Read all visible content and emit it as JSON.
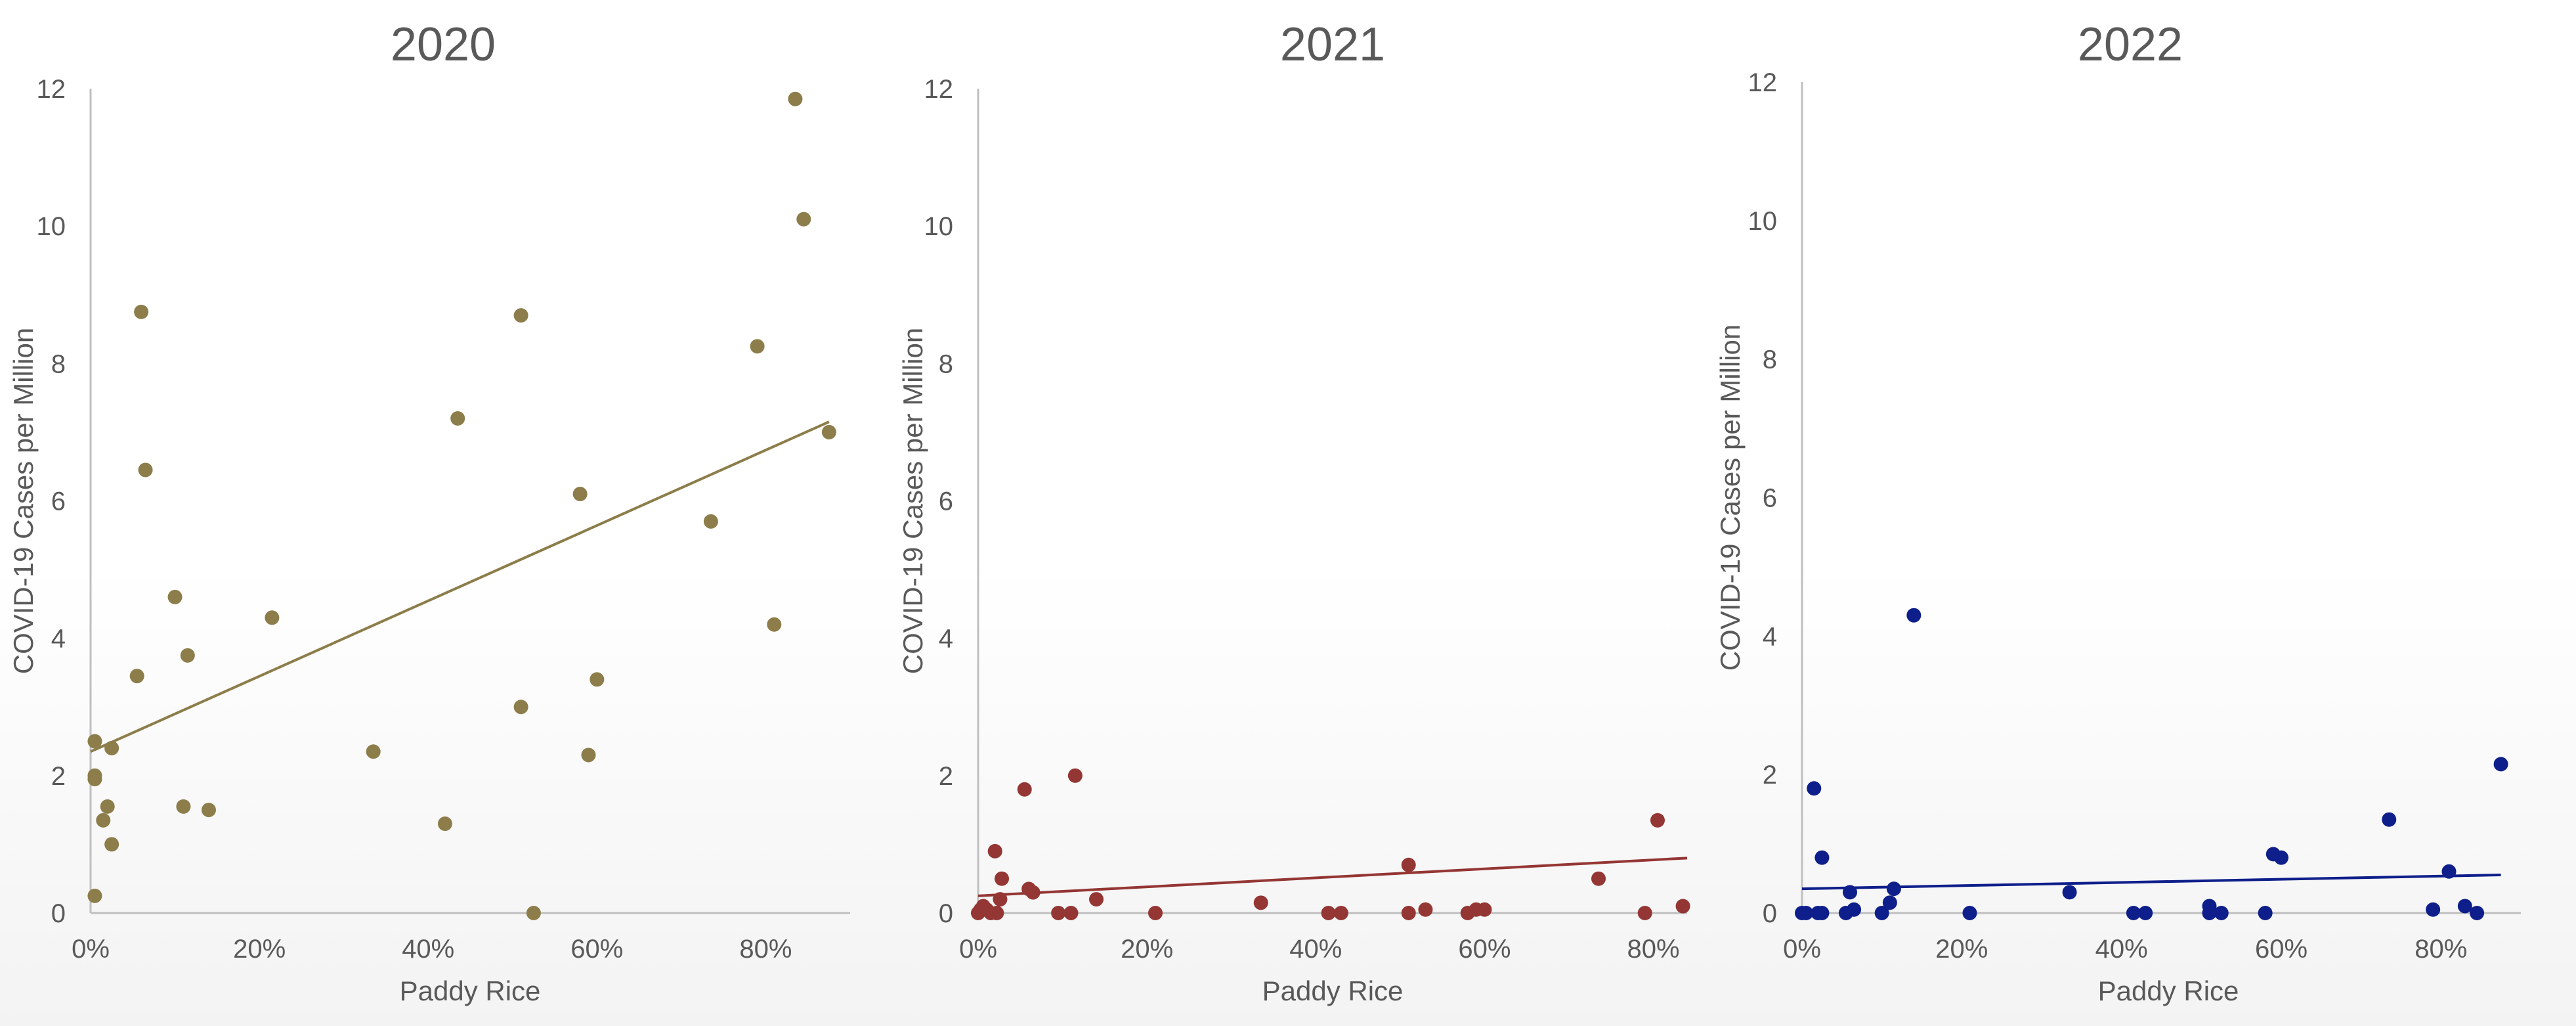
{
  "chart_data": [
    {
      "type": "scatter",
      "title": "2020",
      "xlabel": "Paddy Rice",
      "ylabel": "COVID-19 Cases per Million",
      "xlim": [
        0,
        0.9
      ],
      "ylim": [
        0,
        12
      ],
      "xticks": [
        "0%",
        "20%",
        "40%",
        "60%",
        "80%"
      ],
      "yticks": [
        "0",
        "2",
        "4",
        "6",
        "8",
        "10",
        "12"
      ],
      "color": "#8c7d4a",
      "trendline": {
        "x0": 0,
        "y0": 2.35,
        "x1": 0.875,
        "y1": 7.15
      },
      "points": [
        [
          0.005,
          2.5
        ],
        [
          0.005,
          2.0
        ],
        [
          0.005,
          1.95
        ],
        [
          0.005,
          0.25
        ],
        [
          0.015,
          1.35
        ],
        [
          0.02,
          1.55
        ],
        [
          0.025,
          2.4
        ],
        [
          0.025,
          1.0
        ],
        [
          0.055,
          3.45
        ],
        [
          0.06,
          8.75
        ],
        [
          0.065,
          6.45
        ],
        [
          0.1,
          4.6
        ],
        [
          0.11,
          1.55
        ],
        [
          0.115,
          3.75
        ],
        [
          0.14,
          1.5
        ],
        [
          0.215,
          4.3
        ],
        [
          0.335,
          2.35
        ],
        [
          0.42,
          1.3
        ],
        [
          0.435,
          7.2
        ],
        [
          0.51,
          8.7
        ],
        [
          0.51,
          3.0
        ],
        [
          0.525,
          0.0
        ],
        [
          0.58,
          6.1
        ],
        [
          0.59,
          2.3
        ],
        [
          0.6,
          3.4
        ],
        [
          0.735,
          5.7
        ],
        [
          0.79,
          8.25
        ],
        [
          0.81,
          4.2
        ],
        [
          0.835,
          11.85
        ],
        [
          0.845,
          10.1
        ],
        [
          0.875,
          7.0
        ]
      ]
    },
    {
      "type": "scatter",
      "title": "2021",
      "xlabel": "Paddy Rice",
      "ylabel": "COVID-19 Cases per Million",
      "xlim": [
        0,
        0.84
      ],
      "ylim": [
        0,
        12
      ],
      "xticks": [
        "0%",
        "20%",
        "40%",
        "60%",
        "80%"
      ],
      "yticks": [
        "0",
        "2",
        "4",
        "6",
        "8",
        "10",
        "12"
      ],
      "color": "#943634",
      "trendline": {
        "x0": 0,
        "y0": 0.25,
        "x1": 0.84,
        "y1": 0.8
      },
      "points": [
        [
          0.0,
          0.0
        ],
        [
          0.003,
          0.05
        ],
        [
          0.006,
          0.1
        ],
        [
          0.01,
          0.05
        ],
        [
          0.015,
          0.0
        ],
        [
          0.02,
          0.9
        ],
        [
          0.022,
          0.0
        ],
        [
          0.026,
          0.2
        ],
        [
          0.028,
          0.5
        ],
        [
          0.055,
          1.8
        ],
        [
          0.06,
          0.35
        ],
        [
          0.065,
          0.3
        ],
        [
          0.095,
          0.0
        ],
        [
          0.11,
          0.0
        ],
        [
          0.115,
          2.0
        ],
        [
          0.14,
          0.2
        ],
        [
          0.21,
          0.0
        ],
        [
          0.335,
          0.15
        ],
        [
          0.415,
          0.0
        ],
        [
          0.43,
          0.0
        ],
        [
          0.51,
          0.7
        ],
        [
          0.51,
          0.0
        ],
        [
          0.53,
          0.05
        ],
        [
          0.58,
          0.0
        ],
        [
          0.59,
          0.05
        ],
        [
          0.6,
          0.05
        ],
        [
          0.735,
          0.5
        ],
        [
          0.79,
          0.0
        ],
        [
          0.805,
          1.35
        ],
        [
          0.835,
          0.1
        ]
      ]
    },
    {
      "type": "scatter",
      "title": "2022",
      "xlabel": "Paddy Rice",
      "ylabel": "COVID-19 Cases per Million",
      "xlim": [
        0,
        0.9
      ],
      "ylim": [
        0,
        12
      ],
      "xticks": [
        "0%",
        "20%",
        "40%",
        "60%",
        "80%"
      ],
      "yticks": [
        "0",
        "2",
        "4",
        "6",
        "8",
        "10",
        "12"
      ],
      "color": "#0e1e8a",
      "trendline": {
        "x0": 0,
        "y0": 0.35,
        "x1": 0.875,
        "y1": 0.55
      },
      "points": [
        [
          0.0,
          0.0
        ],
        [
          0.005,
          0.0
        ],
        [
          0.015,
          1.8
        ],
        [
          0.02,
          0.0
        ],
        [
          0.025,
          0.0
        ],
        [
          0.025,
          0.8
        ],
        [
          0.055,
          0.0
        ],
        [
          0.06,
          0.3
        ],
        [
          0.065,
          0.05
        ],
        [
          0.1,
          0.0
        ],
        [
          0.11,
          0.15
        ],
        [
          0.115,
          0.35
        ],
        [
          0.14,
          4.3
        ],
        [
          0.21,
          0.0
        ],
        [
          0.335,
          0.3
        ],
        [
          0.415,
          0.0
        ],
        [
          0.43,
          0.0
        ],
        [
          0.51,
          0.1
        ],
        [
          0.51,
          0.0
        ],
        [
          0.525,
          0.0
        ],
        [
          0.58,
          0.0
        ],
        [
          0.59,
          0.85
        ],
        [
          0.6,
          0.8
        ],
        [
          0.735,
          1.35
        ],
        [
          0.79,
          0.05
        ],
        [
          0.81,
          0.6
        ],
        [
          0.83,
          0.1
        ],
        [
          0.845,
          0.0
        ],
        [
          0.875,
          2.15
        ]
      ]
    }
  ]
}
